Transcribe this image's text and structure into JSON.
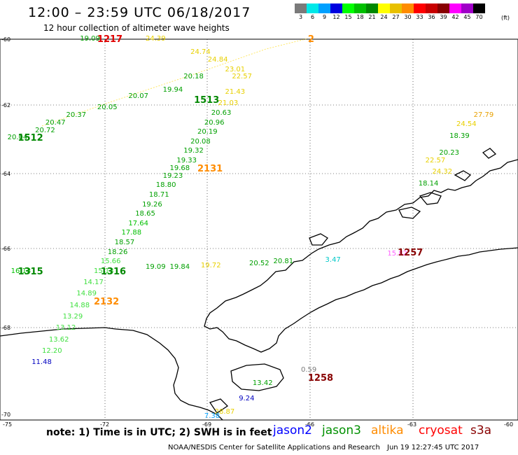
{
  "header": {
    "title": "12:00 – 23:59 UTC 06/18/2017",
    "subtitle": "12 hour collection of altimeter wave heights"
  },
  "legend": {
    "unit": "(ft)",
    "bins": [
      {
        "label": "3",
        "color": "#7a7a7a"
      },
      {
        "label": "6",
        "color": "#00e8e8"
      },
      {
        "label": "9",
        "color": "#00a0ff"
      },
      {
        "label": "12",
        "color": "#0000e0"
      },
      {
        "label": "15",
        "color": "#00ff00"
      },
      {
        "label": "18",
        "color": "#00c000"
      },
      {
        "label": "21",
        "color": "#008800"
      },
      {
        "label": "24",
        "color": "#ffff00"
      },
      {
        "label": "27",
        "color": "#e8c000"
      },
      {
        "label": "30",
        "color": "#ff8c00"
      },
      {
        "label": "33",
        "color": "#ff0000"
      },
      {
        "label": "36",
        "color": "#c80000"
      },
      {
        "label": "39",
        "color": "#880000"
      },
      {
        "label": "42",
        "color": "#ff00ff"
      },
      {
        "label": "45",
        "color": "#a000c8"
      },
      {
        "label": "70",
        "color": "#000000"
      }
    ]
  },
  "axes": {
    "lat_ticks": [
      "-60",
      "-62",
      "-64",
      "-66",
      "-68",
      "-70"
    ],
    "lon_ticks": [
      "-75",
      "-72",
      "-69",
      "-66",
      "-63",
      "-60"
    ]
  },
  "chart_data": {
    "type": "scatter",
    "title": "12:00 – 23:59 UTC 06/18/2017",
    "subtitle": "12 hour collection of altimeter wave heights",
    "xlabel": "",
    "ylabel": "",
    "x_range": [
      -75,
      -60
    ],
    "y_range": [
      -70,
      -60
    ],
    "points": [
      {
        "lon": -72.4,
        "lat": -60.0,
        "value": "19.09",
        "color": "#00a000"
      },
      {
        "lon": -70.5,
        "lat": -60.0,
        "value": "24.39",
        "color": "#e8d000"
      },
      {
        "lon": -69.2,
        "lat": -60.35,
        "value": "24.74",
        "color": "#e8d000"
      },
      {
        "lon": -68.7,
        "lat": -60.55,
        "value": "24.84",
        "color": "#e8d000"
      },
      {
        "lon": -68.2,
        "lat": -60.8,
        "value": "23.01",
        "color": "#e8d000"
      },
      {
        "lon": -68.0,
        "lat": -61.0,
        "value": "22.57",
        "color": "#e8d000"
      },
      {
        "lon": -68.2,
        "lat": -61.4,
        "value": "21.43",
        "color": "#e8d000"
      },
      {
        "lon": -68.4,
        "lat": -61.7,
        "value": "21.03",
        "color": "#e8d000"
      },
      {
        "lon": -68.6,
        "lat": -61.95,
        "value": "20.63",
        "color": "#00a000"
      },
      {
        "lon": -68.8,
        "lat": -62.2,
        "value": "20.96",
        "color": "#00a000"
      },
      {
        "lon": -69.0,
        "lat": -62.45,
        "value": "20.19",
        "color": "#00a000"
      },
      {
        "lon": -69.2,
        "lat": -62.7,
        "value": "20.08",
        "color": "#00a000"
      },
      {
        "lon": -69.4,
        "lat": -62.95,
        "value": "19.32",
        "color": "#00a000"
      },
      {
        "lon": -69.6,
        "lat": -63.2,
        "value": "19.33",
        "color": "#00a000"
      },
      {
        "lon": -69.8,
        "lat": -63.4,
        "value": "19.68",
        "color": "#00a000"
      },
      {
        "lon": -70.0,
        "lat": -63.6,
        "value": "19.23",
        "color": "#00a000"
      },
      {
        "lon": -70.2,
        "lat": -63.85,
        "value": "18.80",
        "color": "#00a000"
      },
      {
        "lon": -70.4,
        "lat": -64.1,
        "value": "18.71",
        "color": "#00a000"
      },
      {
        "lon": -70.6,
        "lat": -64.35,
        "value": "19.26",
        "color": "#00a000"
      },
      {
        "lon": -70.8,
        "lat": -64.6,
        "value": "18.65",
        "color": "#00a000"
      },
      {
        "lon": -71.0,
        "lat": -64.85,
        "value": "17.64",
        "color": "#00c000"
      },
      {
        "lon": -71.2,
        "lat": -65.1,
        "value": "17.88",
        "color": "#00c000"
      },
      {
        "lon": -71.4,
        "lat": -65.35,
        "value": "18.57",
        "color": "#00a000"
      },
      {
        "lon": -71.6,
        "lat": -65.6,
        "value": "18.26",
        "color": "#00a000"
      },
      {
        "lon": -71.8,
        "lat": -65.85,
        "value": "15.66",
        "color": "#40e040"
      },
      {
        "lon": -72.0,
        "lat": -66.1,
        "value": "15.13",
        "color": "#40e040"
      },
      {
        "lon": -72.3,
        "lat": -66.4,
        "value": "14.17",
        "color": "#40e040"
      },
      {
        "lon": -72.5,
        "lat": -66.7,
        "value": "14.89",
        "color": "#40e040"
      },
      {
        "lon": -72.7,
        "lat": -67.0,
        "value": "14.88",
        "color": "#40e040"
      },
      {
        "lon": -72.9,
        "lat": -67.3,
        "value": "13.29",
        "color": "#40e040"
      },
      {
        "lon": -73.1,
        "lat": -67.6,
        "value": "13.12",
        "color": "#40e040"
      },
      {
        "lon": -73.3,
        "lat": -67.9,
        "value": "13.62",
        "color": "#40e040"
      },
      {
        "lon": -73.5,
        "lat": -68.2,
        "value": "12.20",
        "color": "#40e040"
      },
      {
        "lon": -73.8,
        "lat": -68.5,
        "value": "11.48",
        "color": "#0000c0"
      },
      {
        "lon": -71.0,
        "lat": -61.5,
        "value": "20.07",
        "color": "#00a000"
      },
      {
        "lon": -70.0,
        "lat": -61.35,
        "value": "19.94",
        "color": "#00a000"
      },
      {
        "lon": -71.9,
        "lat": -61.8,
        "value": "20.05",
        "color": "#00a000"
      },
      {
        "lon": -72.8,
        "lat": -62.0,
        "value": "20.37",
        "color": "#00a000"
      },
      {
        "lon": -73.4,
        "lat": -62.2,
        "value": "20.47",
        "color": "#00a000"
      },
      {
        "lon": -73.7,
        "lat": -62.4,
        "value": "20.72",
        "color": "#00a000"
      },
      {
        "lon": -74.5,
        "lat": -62.6,
        "value": "20.04",
        "color": "#00a000"
      },
      {
        "lon": -69.4,
        "lat": -61.0,
        "value": "20.18",
        "color": "#00a000"
      },
      {
        "lon": -74.4,
        "lat": -66.1,
        "value": "16.13",
        "color": "#00c000"
      },
      {
        "lon": -70.5,
        "lat": -66.0,
        "value": "19.09",
        "color": "#00a000"
      },
      {
        "lon": -69.8,
        "lat": -66.0,
        "value": "19.84",
        "color": "#00a000"
      },
      {
        "lon": -68.9,
        "lat": -65.95,
        "value": "19.72",
        "color": "#e8d000"
      },
      {
        "lon": -67.5,
        "lat": -65.9,
        "value": "20.52",
        "color": "#00a000"
      },
      {
        "lon": -66.8,
        "lat": -65.85,
        "value": "20.81",
        "color": "#00a000"
      },
      {
        "lon": -65.3,
        "lat": -65.8,
        "value": "3.47",
        "color": "#00c8c8"
      },
      {
        "lon": -63.5,
        "lat": -65.65,
        "value": "15.82",
        "color": "#ff60ff"
      },
      {
        "lon": -62.4,
        "lat": -63.2,
        "value": "22.57",
        "color": "#e8d000"
      },
      {
        "lon": -62.0,
        "lat": -63.0,
        "value": "20.23",
        "color": "#00a000"
      },
      {
        "lon": -61.7,
        "lat": -62.55,
        "value": "18.39",
        "color": "#00a000"
      },
      {
        "lon": -61.5,
        "lat": -62.25,
        "value": "24.54",
        "color": "#e8d000"
      },
      {
        "lon": -61.0,
        "lat": -62.0,
        "value": "27.79",
        "color": "#e8a000"
      },
      {
        "lon": -62.2,
        "lat": -63.5,
        "value": "24.32",
        "color": "#e8d000"
      },
      {
        "lon": -62.6,
        "lat": -63.8,
        "value": "18.14",
        "color": "#00a000"
      },
      {
        "lon": -66.0,
        "lat": -68.7,
        "value": "0.59",
        "color": "#7a7a7a"
      },
      {
        "lon": -67.4,
        "lat": -69.05,
        "value": "13.42",
        "color": "#00a000"
      },
      {
        "lon": -67.8,
        "lat": -69.45,
        "value": "9.24",
        "color": "#0000c0"
      },
      {
        "lon": -68.5,
        "lat": -69.8,
        "value": "28.87",
        "color": "#e8d000"
      },
      {
        "lon": -68.8,
        "lat": -70.0,
        "value": "7.38",
        "color": "#00a0ff"
      }
    ],
    "pass_labels": [
      {
        "lon": -71.9,
        "lat": -60.0,
        "text": "1217",
        "color": "#e00000"
      },
      {
        "lon": -69.1,
        "lat": -61.6,
        "text": "1513",
        "color": "#008800"
      },
      {
        "lon": -74.2,
        "lat": -62.6,
        "text": "1512",
        "color": "#008800"
      },
      {
        "lon": -69.0,
        "lat": -63.4,
        "text": "2131",
        "color": "#ff8c00"
      },
      {
        "lon": -74.2,
        "lat": -66.1,
        "text": "1315",
        "color": "#008800"
      },
      {
        "lon": -71.8,
        "lat": -66.1,
        "text": "1316",
        "color": "#008800"
      },
      {
        "lon": -72.0,
        "lat": -66.9,
        "text": "2132",
        "color": "#ff8c00"
      },
      {
        "lon": -63.2,
        "lat": -65.6,
        "text": "1257",
        "color": "#880000"
      },
      {
        "lon": -65.8,
        "lat": -68.9,
        "text": "1258",
        "color": "#880000"
      },
      {
        "lon": -65.8,
        "lat": -60.0,
        "text": "2",
        "color": "#ff8c00"
      }
    ]
  },
  "footer": {
    "note": "note: 1) Time is in UTC; 2) SWH is in feet",
    "satellites": [
      {
        "name": "jason2",
        "color": "#0000ff"
      },
      {
        "name": "jason3",
        "color": "#009000"
      },
      {
        "name": "altika",
        "color": "#ff8c00"
      },
      {
        "name": "cryosat",
        "color": "#ff0000"
      },
      {
        "name": "s3a",
        "color": "#880000"
      }
    ],
    "credit": "NOAA/NESDIS Center for Satellite Applications and Research",
    "timestamp": "Jun 19 12:27:45 UTC 2017"
  }
}
